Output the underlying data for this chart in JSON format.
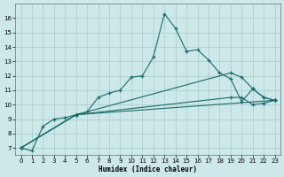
{
  "xlabel": "Humidex (Indice chaleur)",
  "bg_color": "#cce8e8",
  "grid_color": "#aacccc",
  "line_color": "#1a6b6b",
  "xlim": [
    -0.5,
    23.5
  ],
  "ylim": [
    6.5,
    17.0
  ],
  "xticks": [
    0,
    1,
    2,
    3,
    4,
    5,
    6,
    7,
    8,
    9,
    10,
    11,
    12,
    13,
    14,
    15,
    16,
    17,
    18,
    19,
    20,
    21,
    22,
    23
  ],
  "yticks": [
    7,
    8,
    9,
    10,
    11,
    12,
    13,
    14,
    15,
    16
  ],
  "curve1_x": [
    0,
    1,
    2,
    3,
    4,
    5,
    6,
    7,
    8,
    9,
    10,
    11,
    12,
    13,
    14,
    15,
    16,
    17,
    18,
    19,
    20,
    21,
    22,
    23
  ],
  "curve1_y": [
    7.0,
    6.8,
    8.5,
    9.0,
    9.1,
    9.3,
    9.5,
    10.5,
    10.8,
    11.0,
    11.9,
    12.0,
    13.3,
    16.3,
    15.3,
    13.7,
    13.8,
    13.1,
    12.2,
    11.8,
    10.2,
    11.1,
    10.5,
    10.3
  ],
  "curve2_x": [
    0,
    5,
    19,
    20,
    21,
    22,
    23
  ],
  "curve2_y": [
    7.0,
    9.3,
    12.2,
    11.9,
    11.1,
    10.5,
    10.3
  ],
  "curve3_x": [
    0,
    5,
    19,
    20,
    21,
    22,
    23
  ],
  "curve3_y": [
    7.0,
    9.3,
    10.5,
    10.5,
    10.0,
    10.1,
    10.3
  ],
  "curve4_x": [
    0,
    5,
    23
  ],
  "curve4_y": [
    7.0,
    9.3,
    10.3
  ]
}
